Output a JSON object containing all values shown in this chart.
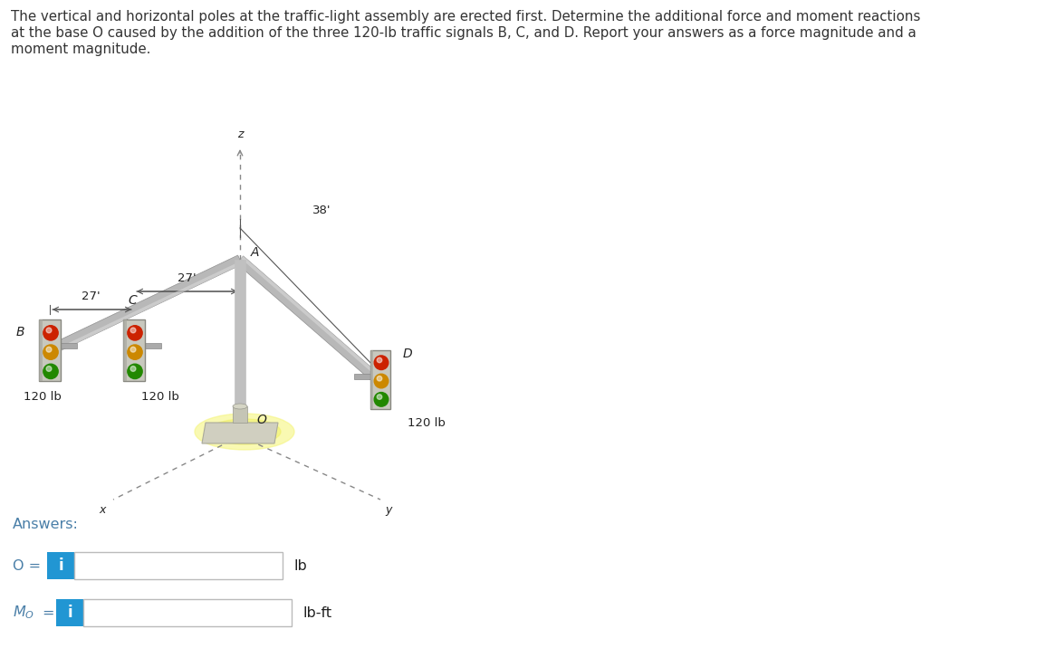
{
  "problem_text_line1": "The vertical and horizontal poles at the traffic-light assembly are erected first. Determine the additional force and moment reactions",
  "problem_text_line2": "at the base O caused by the addition of the three 120-lb traffic signals B, C, and D. Report your answers as a force magnitude and a",
  "problem_text_line3": "moment magnitude.",
  "answers_label": "Answers:",
  "lb_label": "lb",
  "lbft_label": "lb-ft",
  "info_color": "#2196d3",
  "text_color": "#4a86b0",
  "problem_text_color": "#333333",
  "answers_color": "#4a7fa8",
  "bg_color": "#ffffff",
  "input_border_color": "#bbbbbb",
  "dim_27_left": "27'",
  "dim_27_top": "27'",
  "dim_38": "38'",
  "weight_B": "120 lb",
  "weight_C": "120 lb",
  "weight_D": "120 lb",
  "label_A": "A",
  "label_B": "B",
  "label_C": "C",
  "label_D": "D",
  "label_O": "O",
  "label_x": "x",
  "label_y": "y",
  "label_z": "z",
  "pole_color": "#c0c0c0",
  "arm_color": "#b8b8b8",
  "tl_body_color": "#c8c8c0",
  "tl_border_color": "#909090",
  "base_color": "#ccccbb",
  "glow_color": "#f5f580",
  "axis_color": "#888888",
  "dim_line_color": "#555555",
  "label_color": "#222222"
}
